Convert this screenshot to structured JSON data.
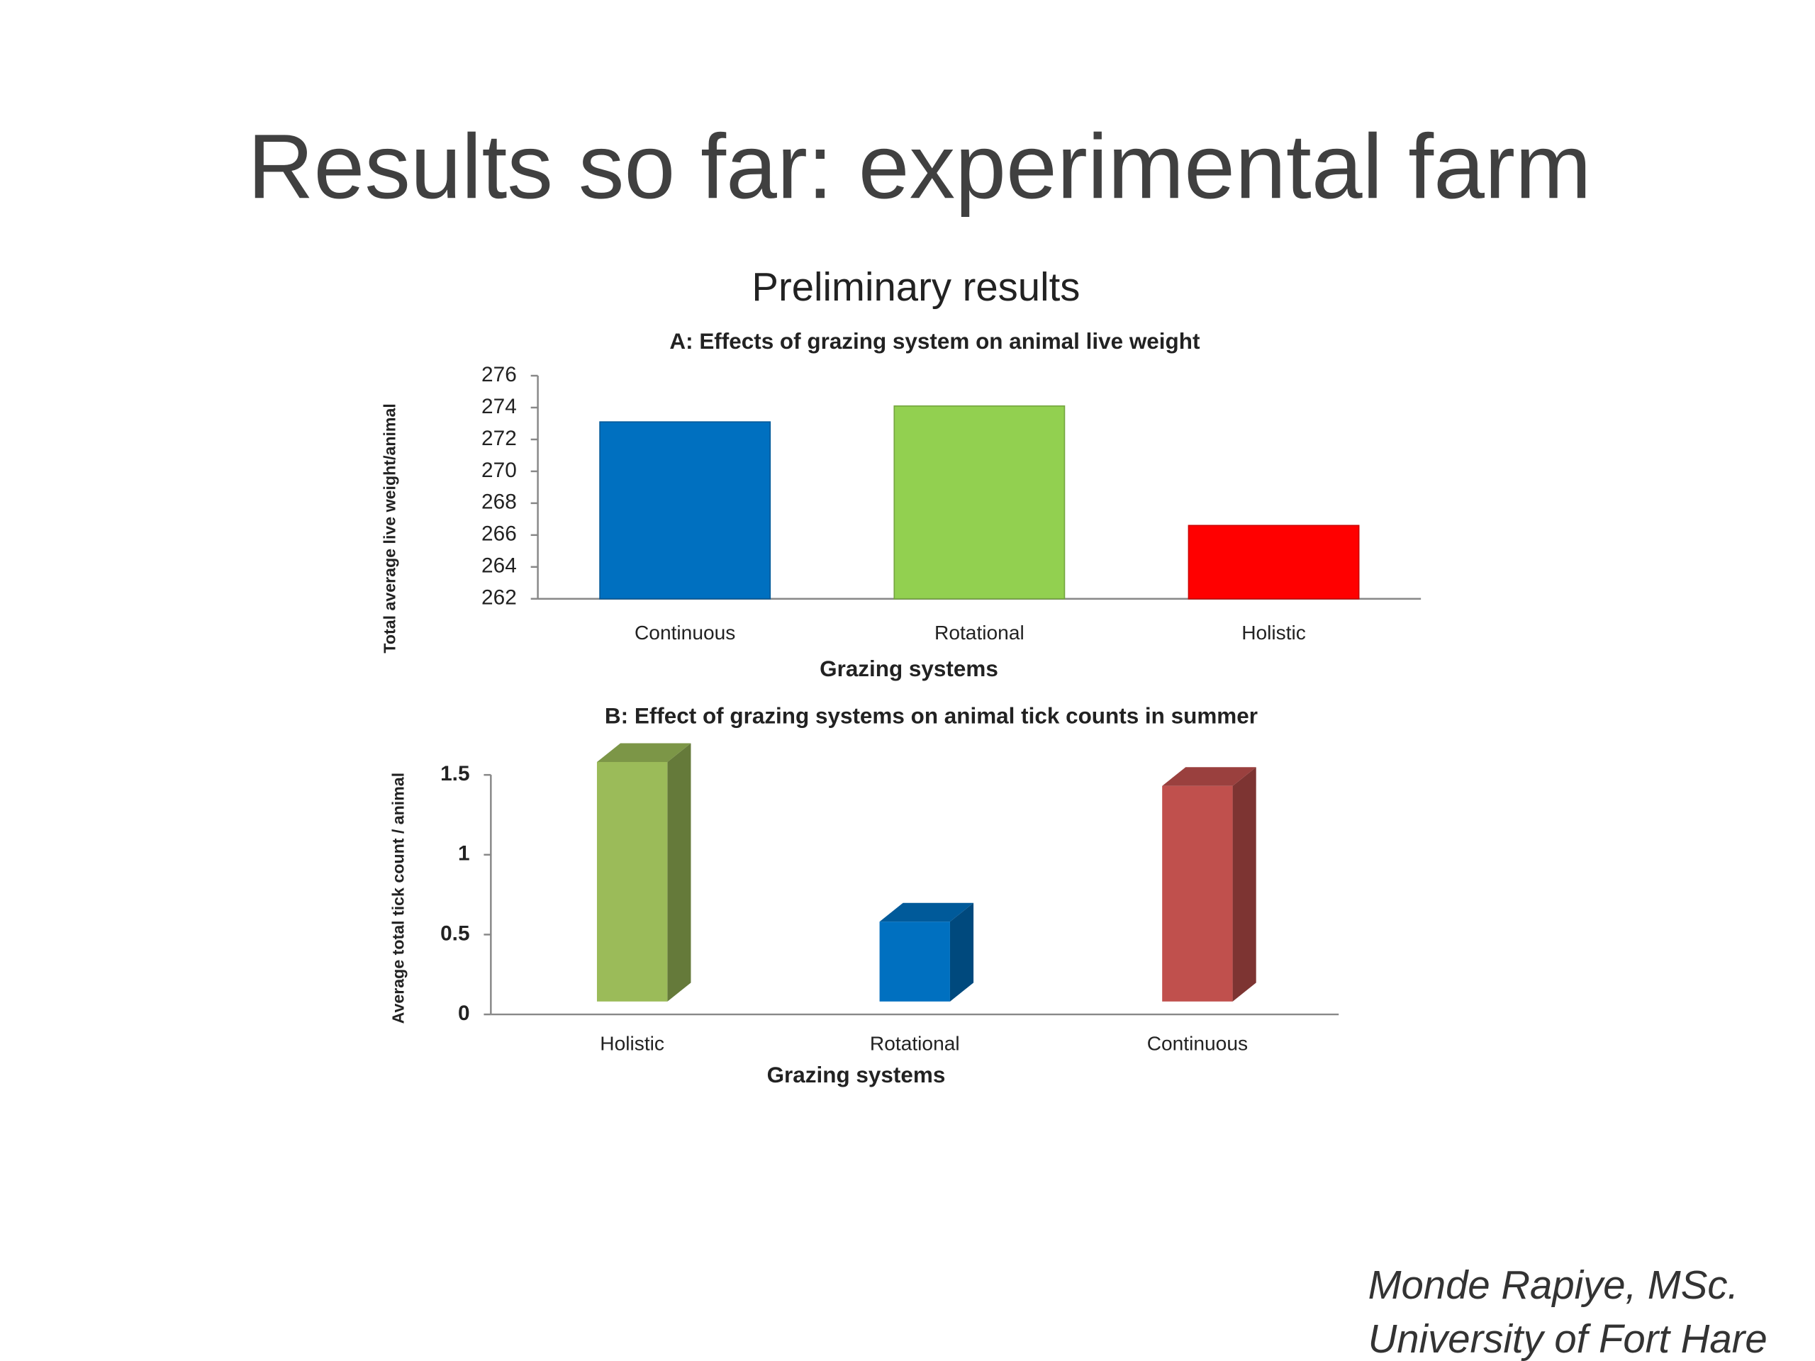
{
  "title": "Results so far: experimental farm",
  "subtitle": "Preliminary results",
  "author": [
    "Monde Rapiye, MSc.",
    "University of Fort Hare"
  ],
  "chart_data": [
    {
      "type": "bar",
      "title": "A: Effects of grazing system on animal live weight",
      "xlabel": "Grazing systems",
      "ylabel": "Total average live weight/animal",
      "categories": [
        "Continuous",
        "Rotational",
        "Holistic"
      ],
      "values": [
        273.1,
        274.1,
        266.6
      ],
      "colors": [
        "#0070c0",
        "#92d050",
        "#ff0000"
      ],
      "ylim": [
        262,
        276
      ],
      "yticks": [
        262,
        264,
        266,
        268,
        270,
        272,
        274,
        276
      ]
    },
    {
      "type": "bar3d",
      "title": "B: Effect of grazing systems on animal tick counts in summer",
      "xlabel": "Grazing systems",
      "ylabel": "Average total tick count / animal",
      "categories": [
        "Holistic",
        "Rotational",
        "Continuous"
      ],
      "values": [
        1.5,
        0.5,
        1.35
      ],
      "colors": [
        "#9bbb59",
        "#0070c0",
        "#c0504d"
      ],
      "ylim": [
        0,
        1.5
      ],
      "yticks": [
        0,
        0.5,
        1,
        1.5
      ]
    }
  ]
}
